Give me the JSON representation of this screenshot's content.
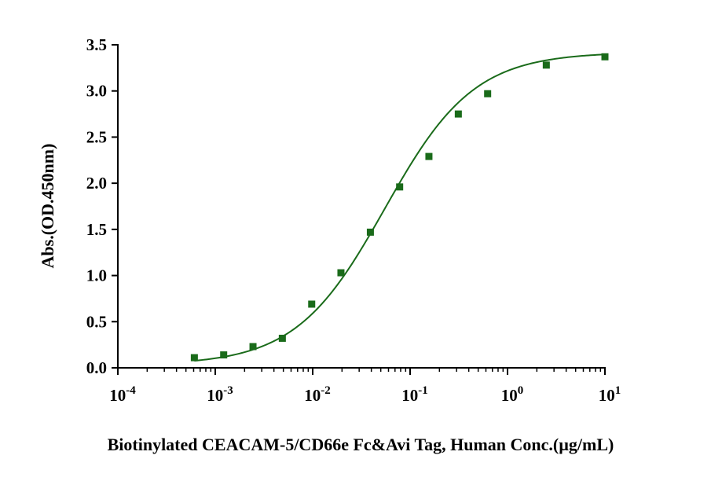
{
  "chart_data": {
    "type": "scatter",
    "title": "",
    "xlabel": "Biotinylated CEACAM-5/CD66e Fc&Avi Tag, Human  Conc.(µg/mL)",
    "ylabel": "Abs.(OD.450nm)",
    "xscale": "log10",
    "xlim": [
      0.0001,
      10
    ],
    "ylim": [
      0,
      3.5
    ],
    "x_ticks": [
      {
        "value": 0.0001,
        "base": "10",
        "exp": "-4"
      },
      {
        "value": 0.001,
        "base": "10",
        "exp": "-3"
      },
      {
        "value": 0.01,
        "base": "10",
        "exp": "-2"
      },
      {
        "value": 0.1,
        "base": "10",
        "exp": "-1"
      },
      {
        "value": 1,
        "base": "10",
        "exp": "0"
      },
      {
        "value": 10,
        "base": "10",
        "exp": "1"
      }
    ],
    "y_ticks": [
      "0.0",
      "0.5",
      "1.0",
      "1.5",
      "2.0",
      "2.5",
      "3.0",
      "3.5"
    ],
    "grid": false,
    "legend": "none",
    "colors": {
      "series": "#1a6b1a",
      "axis": "#000000"
    },
    "series": [
      {
        "marker": "square",
        "x": [
          0.00061,
          0.00122,
          0.00244,
          0.00488,
          0.00977,
          0.0195,
          0.0391,
          0.0781,
          0.156,
          0.3125,
          0.625,
          2.5,
          10
        ],
        "y": [
          0.11,
          0.14,
          0.23,
          0.32,
          0.69,
          1.03,
          1.47,
          1.96,
          2.29,
          2.75,
          2.97,
          3.28,
          3.37
        ]
      }
    ],
    "fit": {
      "model": "4PL",
      "bottom": 0.03,
      "top": 3.42,
      "ec50": 0.055,
      "hill": 0.95,
      "x_range": [
        0.00061,
        10
      ]
    }
  }
}
